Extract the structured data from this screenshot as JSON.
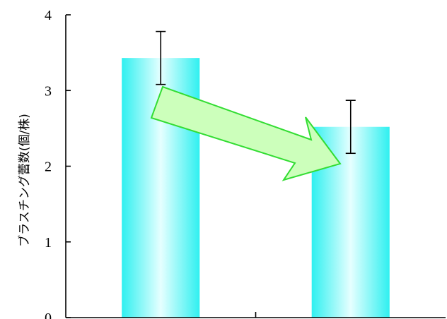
{
  "chart_data": {
    "type": "bar",
    "categories": [
      "",
      ""
    ],
    "values": [
      3.43,
      2.52
    ],
    "errors": [
      0.35,
      0.35
    ],
    "ylabel": "ブラスチング蕾数(個/株)",
    "ylim": [
      0,
      4
    ],
    "yticks": [
      0,
      1,
      2,
      3,
      4
    ],
    "ytick_labels": [
      "0",
      "1",
      "2",
      "3",
      "4"
    ],
    "grid": false,
    "legend": "none",
    "bar_color": "#2ff0f0",
    "bar_highlight": "#e6ffff",
    "arrow_fill": "#ccffbb",
    "arrow_stroke": "#33dd33",
    "arrow_direction": "decrease"
  }
}
